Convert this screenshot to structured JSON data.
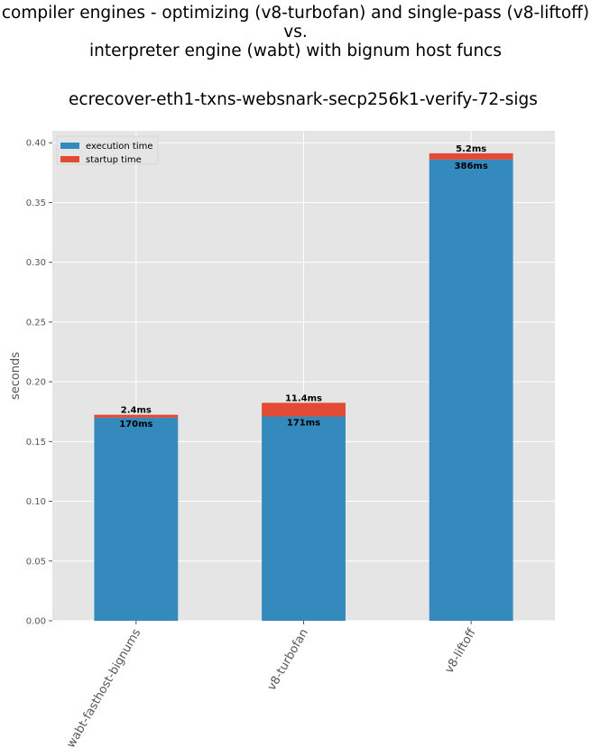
{
  "chart_data": {
    "type": "bar",
    "stacked": true,
    "suptitle": "compiler engines - optimizing (v8-turbofan) and single-pass (v8-liftoff)\nvs.\ninterpreter engine (wabt) with bignum host funcs",
    "title": "ecrecover-eth1-txns-websnark-secp256k1-verify-72-sigs",
    "xlabel": "",
    "ylabel": "seconds",
    "ylim": [
      0,
      0.41
    ],
    "yticks": [
      0.0,
      0.05,
      0.1,
      0.15,
      0.2,
      0.25,
      0.3,
      0.35,
      0.4
    ],
    "ytick_labels": [
      "0.00",
      "0.05",
      "0.10",
      "0.15",
      "0.20",
      "0.25",
      "0.30",
      "0.35",
      "0.40"
    ],
    "grid": true,
    "legend_position": "top-left",
    "categories": [
      "wabt-fasthost-bignums",
      "v8-turbofan",
      "v8-liftoff"
    ],
    "series": [
      {
        "name": "execution time",
        "color": "#348ABD",
        "values": [
          0.17,
          0.171,
          0.386
        ],
        "labels": [
          "170ms",
          "171ms",
          "386ms"
        ]
      },
      {
        "name": "startup time",
        "color": "#E24A33",
        "values": [
          0.0024,
          0.0114,
          0.0052
        ],
        "labels": [
          "2.4ms",
          "11.4ms",
          "5.2ms"
        ]
      }
    ]
  }
}
